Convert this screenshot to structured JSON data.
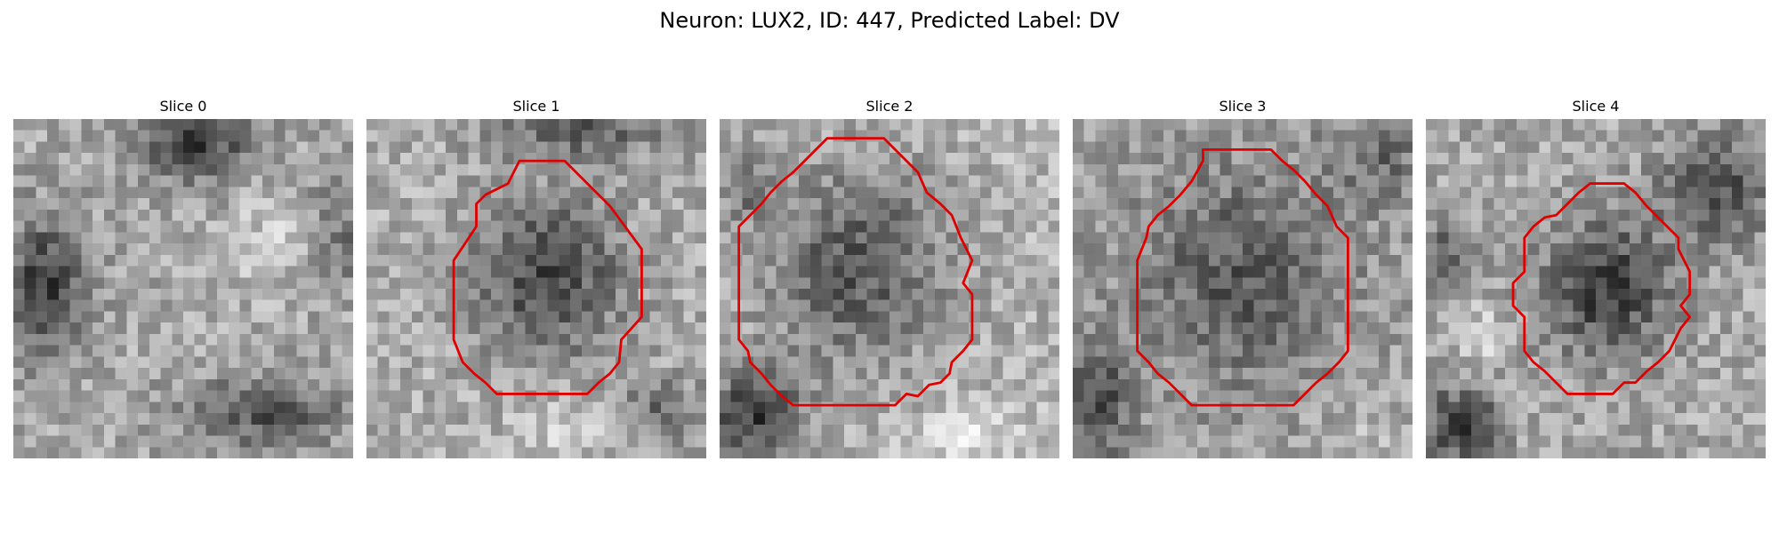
{
  "figure": {
    "title": "Neuron: LUX2, ID: 447, Predicted Label: DV",
    "grid_size": 30,
    "colormap": "gray",
    "contour_color": "#e00000"
  },
  "panels": [
    {
      "title": "Slice 0",
      "contour": [],
      "seed": 11
    },
    {
      "title": "Slice 1",
      "seed": 23,
      "contour": [
        [
          13.5,
          3.7
        ],
        [
          17.5,
          3.7
        ],
        [
          18.5,
          4.7
        ],
        [
          20.5,
          6.7
        ],
        [
          21.5,
          7.7
        ],
        [
          24.3,
          11.5
        ],
        [
          24.3,
          17.5
        ],
        [
          22.5,
          19.5
        ],
        [
          22.3,
          21.5
        ],
        [
          21.5,
          22.5
        ],
        [
          20.5,
          23.3
        ],
        [
          19.5,
          24.3
        ],
        [
          11.5,
          24.3
        ],
        [
          10.5,
          23.3
        ],
        [
          9.5,
          22.5
        ],
        [
          8.5,
          21.5
        ],
        [
          7.7,
          19.5
        ],
        [
          7.7,
          12.5
        ],
        [
          9.7,
          9.5
        ],
        [
          9.7,
          7.5
        ],
        [
          10.5,
          6.7
        ],
        [
          12.5,
          5.7
        ]
      ]
    },
    {
      "title": "Slice 2",
      "seed": 37,
      "contour": [
        [
          9.5,
          1.7
        ],
        [
          14.5,
          1.7
        ],
        [
          15.5,
          2.7
        ],
        [
          16.5,
          3.7
        ],
        [
          17.5,
          4.7
        ],
        [
          18.3,
          6.5
        ],
        [
          19.5,
          7.5
        ],
        [
          20.5,
          8.5
        ],
        [
          21.3,
          10.5
        ],
        [
          22.3,
          12.5
        ],
        [
          21.5,
          14.5
        ],
        [
          22.3,
          15.5
        ],
        [
          22.3,
          19.5
        ],
        [
          21.5,
          20.5
        ],
        [
          20.5,
          21.5
        ],
        [
          20.3,
          22.5
        ],
        [
          19.5,
          23.3
        ],
        [
          18.5,
          23.5
        ],
        [
          17.5,
          24.5
        ],
        [
          16.5,
          24.3
        ],
        [
          15.5,
          25.3
        ],
        [
          6.5,
          25.3
        ],
        [
          5.5,
          24.5
        ],
        [
          4.5,
          23.5
        ],
        [
          3.7,
          22.5
        ],
        [
          2.7,
          21.5
        ],
        [
          2.5,
          20.5
        ],
        [
          1.7,
          19.5
        ],
        [
          1.7,
          9.5
        ],
        [
          2.7,
          8.5
        ],
        [
          3.7,
          7.5
        ],
        [
          4.5,
          6.5
        ],
        [
          5.5,
          5.5
        ],
        [
          6.5,
          4.7
        ],
        [
          7.5,
          3.7
        ],
        [
          8.5,
          2.7
        ]
      ]
    },
    {
      "title": "Slice 3",
      "seed": 51,
      "contour": [
        [
          11.5,
          2.7
        ],
        [
          17.5,
          2.7
        ],
        [
          18.5,
          3.7
        ],
        [
          19.5,
          4.5
        ],
        [
          20.5,
          5.5
        ],
        [
          21.5,
          6.7
        ],
        [
          22.5,
          7.7
        ],
        [
          23.3,
          9.5
        ],
        [
          24.3,
          10.5
        ],
        [
          24.3,
          20.5
        ],
        [
          23.5,
          21.5
        ],
        [
          22.5,
          22.5
        ],
        [
          21.5,
          23.3
        ],
        [
          20.5,
          24.3
        ],
        [
          19.5,
          25.3
        ],
        [
          10.5,
          25.3
        ],
        [
          9.5,
          24.3
        ],
        [
          8.5,
          23.3
        ],
        [
          7.5,
          22.5
        ],
        [
          6.7,
          21.5
        ],
        [
          5.7,
          20.5
        ],
        [
          5.7,
          12.5
        ],
        [
          6.5,
          10.5
        ],
        [
          6.7,
          9.5
        ],
        [
          7.5,
          8.5
        ],
        [
          8.5,
          7.7
        ],
        [
          9.5,
          6.7
        ],
        [
          10.5,
          5.5
        ],
        [
          11.5,
          3.7
        ]
      ]
    },
    {
      "title": "Slice 4",
      "seed": 67,
      "contour": [
        [
          14.5,
          5.7
        ],
        [
          17.5,
          5.7
        ],
        [
          18.5,
          6.5
        ],
        [
          19.5,
          7.7
        ],
        [
          22.3,
          10.5
        ],
        [
          22.3,
          11.5
        ],
        [
          23.3,
          13.5
        ],
        [
          23.3,
          15.5
        ],
        [
          22.5,
          16.5
        ],
        [
          23.3,
          17.5
        ],
        [
          22.5,
          18.5
        ],
        [
          21.5,
          20.5
        ],
        [
          20.5,
          21.5
        ],
        [
          19.5,
          22.3
        ],
        [
          18.5,
          23.3
        ],
        [
          17.5,
          23.3
        ],
        [
          16.5,
          24.3
        ],
        [
          12.5,
          24.3
        ],
        [
          11.5,
          23.3
        ],
        [
          10.5,
          22.3
        ],
        [
          9.5,
          21.5
        ],
        [
          8.7,
          20.5
        ],
        [
          8.7,
          17.5
        ],
        [
          7.7,
          16.5
        ],
        [
          7.7,
          14.5
        ],
        [
          8.7,
          13.5
        ],
        [
          8.7,
          10.5
        ],
        [
          9.5,
          9.5
        ],
        [
          10.5,
          8.7
        ],
        [
          11.5,
          8.5
        ],
        [
          12.5,
          7.5
        ],
        [
          13.5,
          6.5
        ]
      ]
    }
  ]
}
